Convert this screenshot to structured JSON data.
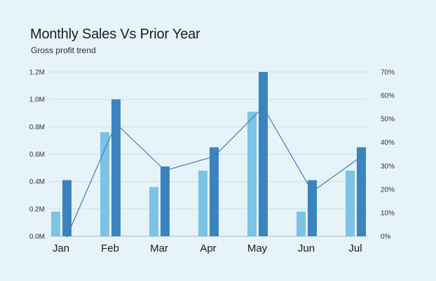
{
  "chart_data": {
    "type": "bar",
    "title": "Monthly Sales Vs Prior Year",
    "subtitle": "Gross profit trend",
    "categories": [
      "Jan",
      "Feb",
      "Mar",
      "Apr",
      "May",
      "Jun",
      "Jul"
    ],
    "series": [
      {
        "values": [
          0.18,
          0.76,
          0.36,
          0.48,
          0.91,
          0.18,
          0.48
        ],
        "color": "#7cc3e6",
        "kind": "bar"
      },
      {
        "values": [
          0.41,
          1.0,
          0.51,
          0.65,
          1.2,
          0.41,
          0.65
        ],
        "color": "#3b84be",
        "kind": "bar"
      },
      {
        "values": [
          0,
          48,
          28,
          34,
          55,
          19,
          34
        ],
        "color": "#3a7fb8",
        "kind": "line",
        "axis": "right"
      }
    ],
    "y_left": {
      "ylim": [
        0,
        1.2
      ],
      "ticks": [
        "0.0M",
        "0.2M",
        "0.4M",
        "0.6M",
        "0.8M",
        "1.0M",
        "1.2M"
      ]
    },
    "y_right": {
      "ylim": [
        0,
        70
      ],
      "ticks": [
        "0%",
        "10%",
        "20%",
        "30%",
        "40%",
        "50%",
        "60%",
        "70%"
      ]
    },
    "grid": true,
    "legend": "none"
  }
}
